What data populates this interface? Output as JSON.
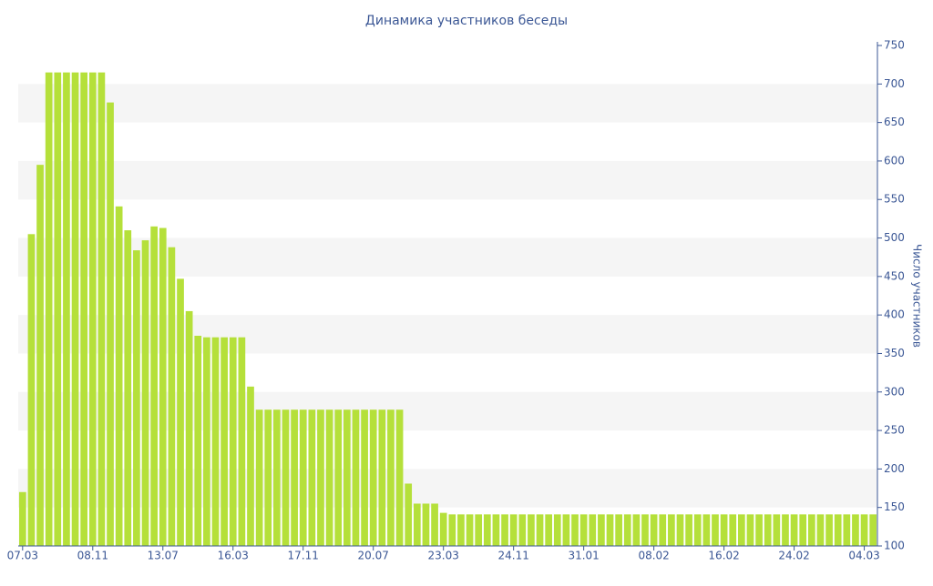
{
  "chart_data": {
    "type": "bar",
    "title": "Динамика участников беседы",
    "y_label": "Число участников",
    "categories": [
      "07.03",
      null,
      null,
      null,
      null,
      null,
      null,
      null,
      "08.11",
      null,
      null,
      null,
      null,
      null,
      null,
      null,
      "13.07",
      null,
      null,
      null,
      null,
      null,
      null,
      null,
      "16.03",
      null,
      null,
      null,
      null,
      null,
      null,
      null,
      "17.11",
      null,
      null,
      null,
      null,
      null,
      null,
      null,
      "20.07",
      null,
      null,
      null,
      null,
      null,
      null,
      null,
      "23.03",
      null,
      null,
      null,
      null,
      null,
      null,
      null,
      "24.11",
      null,
      null,
      null,
      null,
      null,
      null,
      null,
      "31.01",
      null,
      null,
      null,
      null,
      null,
      null,
      null,
      "08.02",
      null,
      null,
      null,
      null,
      null,
      null,
      null,
      "16.02",
      null,
      null,
      null,
      null,
      null,
      null,
      null,
      "24.02",
      null,
      null,
      null,
      null,
      null,
      null,
      null,
      "04.03",
      null
    ],
    "values": [
      170,
      505,
      595,
      715,
      715,
      715,
      715,
      715,
      715,
      715,
      676,
      541,
      510,
      484,
      497,
      515,
      513,
      488,
      447,
      405,
      373,
      371,
      371,
      371,
      371,
      371,
      307,
      277,
      277,
      277,
      277,
      277,
      277,
      277,
      277,
      277,
      277,
      277,
      277,
      277,
      277,
      277,
      277,
      277,
      181,
      155,
      155,
      155,
      143,
      141,
      141,
      141,
      141,
      141,
      141,
      141,
      141,
      141,
      141,
      141,
      141,
      141,
      141,
      141,
      141,
      141,
      141,
      141,
      141,
      141,
      141,
      141,
      141,
      141,
      141,
      141,
      141,
      141,
      141,
      141,
      141,
      141,
      141,
      141,
      141,
      141,
      141,
      141,
      141,
      141,
      141,
      141,
      141,
      141,
      141,
      141,
      141,
      141
    ],
    "color": "#b5e03a",
    "ylim": [
      100,
      750
    ],
    "yticks": [
      100,
      150,
      200,
      250,
      300,
      350,
      400,
      450,
      500,
      550,
      600,
      650,
      700,
      750
    ],
    "grid": "bands",
    "y_axis_side": "right"
  }
}
